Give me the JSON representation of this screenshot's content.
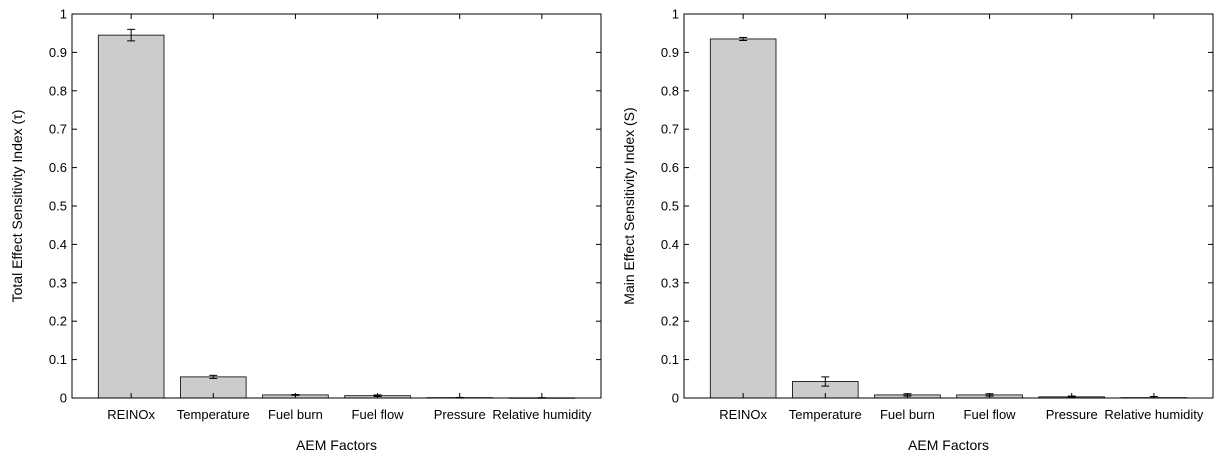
{
  "chart_data": [
    {
      "type": "bar",
      "xlabel": "AEM Factors",
      "ylabel": "Total Effect Sensitivity Index  (τ)",
      "categories": [
        "REINOx",
        "Temperature",
        "Fuel burn",
        "Fuel flow",
        "Pressure",
        "Relative humidity"
      ],
      "values": [
        0.945,
        0.055,
        0.008,
        0.006,
        0.001,
        0.0005
      ],
      "errors": [
        0.015,
        0.004,
        0.001,
        0.002,
        0.0005,
        0.0003
      ],
      "ylim": [
        0,
        1
      ],
      "yticks": [
        "0",
        "0.1",
        "0.2",
        "0.3",
        "0.4",
        "0.5",
        "0.6",
        "0.7",
        "0.8",
        "0.9",
        "1"
      ],
      "bar_color": "#cccccc",
      "grid": false
    },
    {
      "type": "bar",
      "xlabel": "AEM Factors",
      "ylabel": "Main Effect Sensitivity Index (S)",
      "categories": [
        "REINOx",
        "Temperature",
        "Fuel burn",
        "Fuel flow",
        "Pressure",
        "Relative humidity"
      ],
      "values": [
        0.935,
        0.043,
        0.008,
        0.008,
        0.003,
        0.001
      ],
      "errors": [
        0.004,
        0.012,
        0.003,
        0.003,
        0.002,
        0.003
      ],
      "ylim": [
        0,
        1
      ],
      "yticks": [
        "0",
        "0.1",
        "0.2",
        "0.3",
        "0.4",
        "0.5",
        "0.6",
        "0.7",
        "0.8",
        "0.9",
        "1"
      ],
      "bar_color": "#cccccc",
      "grid": false
    }
  ]
}
